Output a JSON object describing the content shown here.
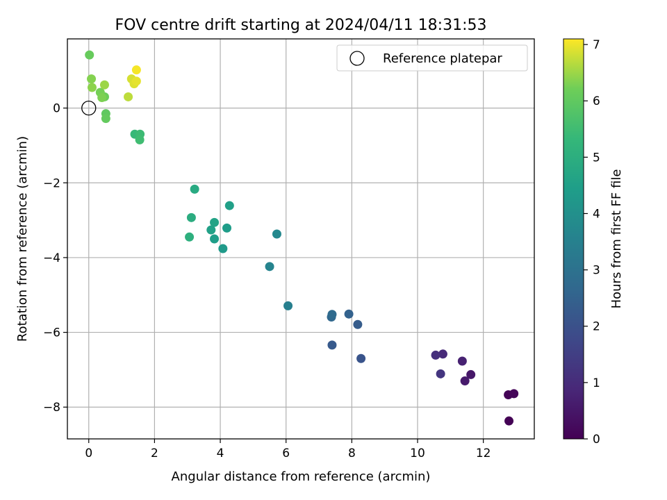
{
  "chart_data": {
    "type": "scatter",
    "title": "FOV centre drift starting at 2024/04/11 18:31:53",
    "xlabel": "Angular distance from reference (arcmin)",
    "ylabel": "Rotation from reference (arcmin)",
    "xlim": [
      -0.65,
      13.55
    ],
    "ylim": [
      -8.85,
      1.85
    ],
    "xticks": [
      0,
      2,
      4,
      6,
      8,
      10,
      12
    ],
    "yticks": [
      -8,
      -6,
      -4,
      -2,
      0
    ],
    "grid": true,
    "legend": {
      "position": "top-right",
      "entries": [
        "Reference platepar"
      ]
    },
    "reference_point": {
      "x": 0,
      "y": 0
    },
    "colorbar": {
      "label": "Hours from first FF file",
      "range": [
        0,
        7.1
      ],
      "ticks": [
        0,
        1,
        2,
        3,
        4,
        5,
        6,
        7
      ],
      "colormap": "viridis"
    },
    "points": [
      {
        "x": 12.78,
        "y": -8.37,
        "h": 0.02
      },
      {
        "x": 12.76,
        "y": -7.67,
        "h": 0.06
      },
      {
        "x": 12.93,
        "y": -7.64,
        "h": 0.12
      },
      {
        "x": 11.62,
        "y": -7.13,
        "h": 0.5
      },
      {
        "x": 11.44,
        "y": -7.3,
        "h": 0.6
      },
      {
        "x": 11.36,
        "y": -6.77,
        "h": 0.75
      },
      {
        "x": 10.77,
        "y": -6.58,
        "h": 0.95
      },
      {
        "x": 10.55,
        "y": -6.61,
        "h": 1.1
      },
      {
        "x": 10.7,
        "y": -7.11,
        "h": 1.25
      },
      {
        "x": 8.28,
        "y": -6.7,
        "h": 2.1
      },
      {
        "x": 7.4,
        "y": -6.34,
        "h": 2.25
      },
      {
        "x": 8.18,
        "y": -5.79,
        "h": 2.35
      },
      {
        "x": 7.91,
        "y": -5.51,
        "h": 2.5
      },
      {
        "x": 7.38,
        "y": -5.59,
        "h": 2.65
      },
      {
        "x": 7.4,
        "y": -5.52,
        "h": 2.75
      },
      {
        "x": 6.06,
        "y": -5.29,
        "h": 3.45
      },
      {
        "x": 5.5,
        "y": -4.24,
        "h": 3.6
      },
      {
        "x": 5.72,
        "y": -3.37,
        "h": 3.75
      },
      {
        "x": 4.08,
        "y": -3.76,
        "h": 4.3
      },
      {
        "x": 3.82,
        "y": -3.5,
        "h": 4.45
      },
      {
        "x": 3.72,
        "y": -3.26,
        "h": 4.55
      },
      {
        "x": 4.2,
        "y": -3.21,
        "h": 4.4
      },
      {
        "x": 3.82,
        "y": -3.06,
        "h": 4.6
      },
      {
        "x": 4.28,
        "y": -2.61,
        "h": 4.5
      },
      {
        "x": 3.22,
        "y": -2.17,
        "h": 4.85
      },
      {
        "x": 3.12,
        "y": -2.93,
        "h": 4.95
      },
      {
        "x": 3.06,
        "y": -3.45,
        "h": 5.05
      },
      {
        "x": 1.4,
        "y": -0.7,
        "h": 5.35
      },
      {
        "x": 1.56,
        "y": -0.7,
        "h": 5.45
      },
      {
        "x": 1.55,
        "y": -0.85,
        "h": 5.5
      },
      {
        "x": 0.52,
        "y": -0.15,
        "h": 6.0
      },
      {
        "x": 0.52,
        "y": -0.28,
        "h": 6.05
      },
      {
        "x": 0.02,
        "y": 1.42,
        "h": 6.1
      },
      {
        "x": 0.48,
        "y": 0.3,
        "h": 6.15
      },
      {
        "x": 0.35,
        "y": 0.42,
        "h": 6.25
      },
      {
        "x": 0.4,
        "y": 0.28,
        "h": 6.3
      },
      {
        "x": 0.08,
        "y": 0.78,
        "h": 6.35
      },
      {
        "x": 0.1,
        "y": 0.55,
        "h": 6.4
      },
      {
        "x": 0.48,
        "y": 0.62,
        "h": 6.5
      },
      {
        "x": 1.2,
        "y": 0.3,
        "h": 6.7
      },
      {
        "x": 1.3,
        "y": 0.78,
        "h": 6.85
      },
      {
        "x": 1.38,
        "y": 0.65,
        "h": 6.9
      },
      {
        "x": 1.45,
        "y": 0.72,
        "h": 6.95
      },
      {
        "x": 1.45,
        "y": 1.02,
        "h": 7.05
      }
    ]
  }
}
